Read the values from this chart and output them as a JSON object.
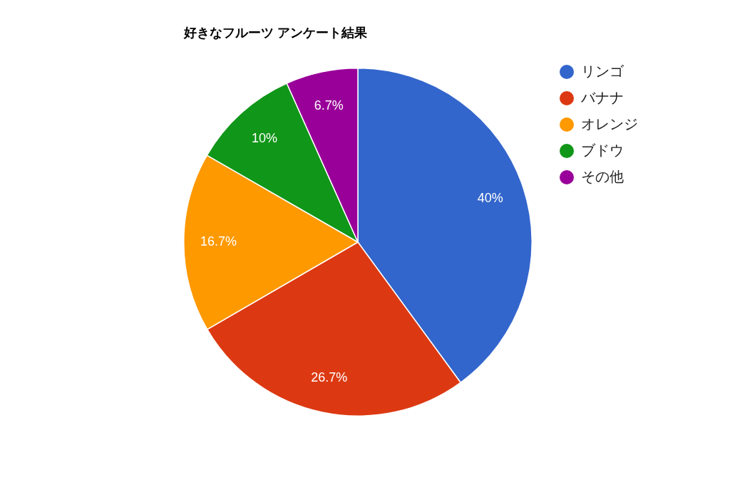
{
  "chart_data": {
    "type": "pie",
    "title": "好きなフルーツ アンケート結果",
    "categories": [
      "リンゴ",
      "バナナ",
      "オレンジ",
      "ブドウ",
      "その他"
    ],
    "values": [
      40,
      26.7,
      16.7,
      10,
      6.7
    ],
    "colors": [
      "#3366cc",
      "#dc3912",
      "#ff9900",
      "#109618",
      "#990099"
    ],
    "value_labels": [
      "40%",
      "26.7%",
      "16.7%",
      "10%",
      "6.7%"
    ],
    "legend": "top right"
  }
}
